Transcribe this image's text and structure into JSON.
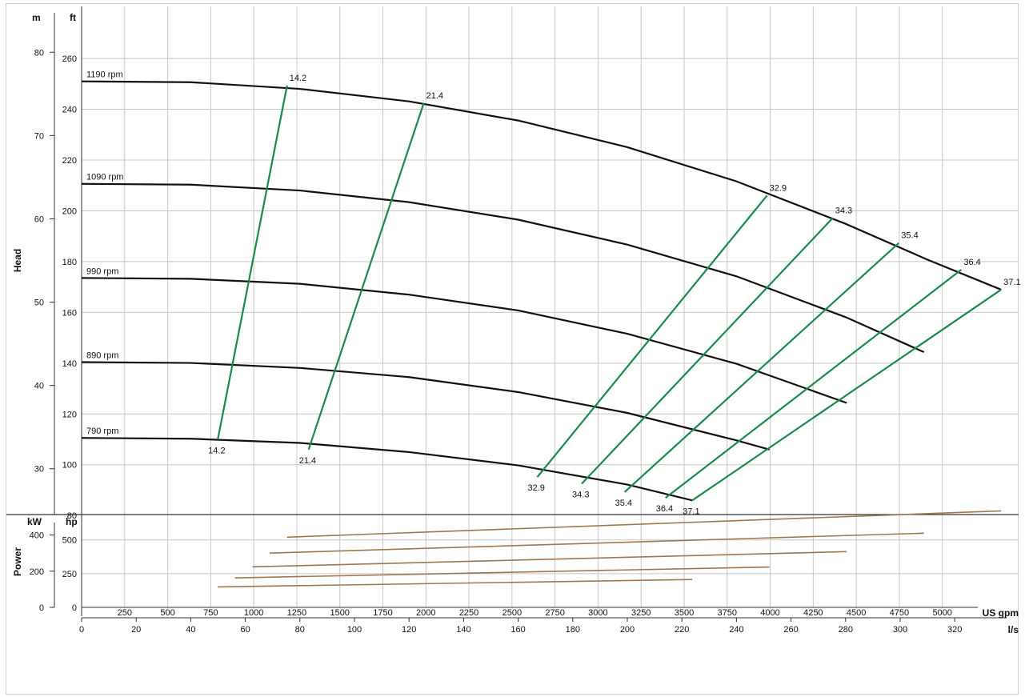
{
  "chart_data": {
    "type": "line",
    "panels": {
      "head": {
        "ylabel": "Head",
        "unit_left": "m",
        "unit_right": "ft",
        "m_ticks": [
          30,
          40,
          50,
          60,
          70,
          80
        ],
        "ft_ticks": [
          80,
          100,
          120,
          140,
          160,
          180,
          200,
          220,
          240,
          260
        ],
        "ylim_m": [
          24.5,
          85.5
        ],
        "x_range_ls": [
          0,
          338
        ],
        "speed_curves": [
          {
            "name": "1190 rpm",
            "x": [
              0,
              40,
              80,
              120,
              160,
              200,
              240,
              280,
              310,
              337
            ],
            "y": [
              76.5,
              76.4,
              75.6,
              74.1,
              71.8,
              68.6,
              64.5,
              59.4,
              55.1,
              51.5
            ]
          },
          {
            "name": "1090 rpm",
            "x": [
              0,
              40,
              80,
              120,
              160,
              200,
              240,
              280,
              308.7
            ],
            "y": [
              64.2,
              64.1,
              63.4,
              62.0,
              59.9,
              56.9,
              53.1,
              48.2,
              44.0
            ]
          },
          {
            "name": "990 rpm",
            "x": [
              0,
              40,
              80,
              120,
              160,
              200,
              240,
              280.4
            ],
            "y": [
              52.9,
              52.8,
              52.2,
              50.9,
              49.0,
              46.2,
              42.6,
              37.9
            ]
          },
          {
            "name": "890 rpm",
            "x": [
              0,
              40,
              80,
              120,
              160,
              200,
              240,
              252.1
            ],
            "y": [
              42.8,
              42.7,
              42.1,
              41.0,
              39.2,
              36.7,
              33.4,
              32.3
            ]
          },
          {
            "name": "790 rpm",
            "x": [
              0,
              40,
              80,
              120,
              160,
              200,
              223.8
            ],
            "y": [
              33.7,
              33.6,
              33.1,
              32.0,
              30.4,
              28.1,
              26.2
            ]
          }
        ],
        "efficiency_lines": [
          {
            "label": "14.2",
            "x": [
              75.3,
              49.9
            ],
            "y": [
              76.0,
              33.5
            ]
          },
          {
            "label": "21.4",
            "x": [
              125.4,
              83.2
            ],
            "y": [
              73.9,
              32.3
            ]
          },
          {
            "label": "32.9",
            "x": [
              251.2,
              167.0
            ],
            "y": [
              62.8,
              29.0
            ]
          },
          {
            "label": "34.3",
            "x": [
              275.3,
              183.3
            ],
            "y": [
              60.1,
              28.2
            ]
          },
          {
            "label": "35.4",
            "x": [
              299.5,
              199.0
            ],
            "y": [
              57.1,
              27.2
            ]
          },
          {
            "label": "36.4",
            "x": [
              322.4,
              214.0
            ],
            "y": [
              53.9,
              26.5
            ]
          },
          {
            "label": "37.1",
            "x": [
              337.0,
              223.8
            ],
            "y": [
              51.5,
              26.2
            ]
          }
        ]
      },
      "power": {
        "ylabel": "Power",
        "unit_left": "kW",
        "unit_right": "hp",
        "kw_ticks": [
          0,
          200,
          400
        ],
        "hp_ticks": [
          0,
          250,
          500
        ],
        "ylim_kw": [
          0,
          513
        ],
        "series": [
          {
            "name": "1190 rpm",
            "x": [
              75.3,
              337.0
            ],
            "y": [
              388,
              533
            ]
          },
          {
            "name": "1090 rpm",
            "x": [
              68.9,
              308.7
            ],
            "y": [
              300,
              410
            ]
          },
          {
            "name": "990 rpm",
            "x": [
              62.6,
              280.4
            ],
            "y": [
              224,
              308
            ]
          },
          {
            "name": "890 rpm",
            "x": [
              56.2,
              252.1
            ],
            "y": [
              163,
              223
            ]
          },
          {
            "name": "790 rpm",
            "x": [
              49.9,
              223.8
            ],
            "y": [
              113,
              154
            ]
          }
        ]
      }
    },
    "x_axes": {
      "gpm": {
        "unit": "US gpm",
        "ticks": [
          250,
          500,
          750,
          1000,
          1250,
          1500,
          1750,
          2000,
          2250,
          2500,
          2750,
          3000,
          3250,
          3500,
          3750,
          4000,
          4250,
          4500,
          4750,
          5000
        ]
      },
      "ls": {
        "unit": "l/s",
        "ticks": [
          0,
          20,
          40,
          60,
          80,
          100,
          120,
          140,
          160,
          180,
          200,
          220,
          240,
          260,
          280,
          300,
          320
        ]
      }
    },
    "colors": {
      "speed_curve": "#111111",
      "efficiency_line": "#1a8a4a",
      "power_line": "#a0784f",
      "grid": "#c8c8c8"
    }
  }
}
